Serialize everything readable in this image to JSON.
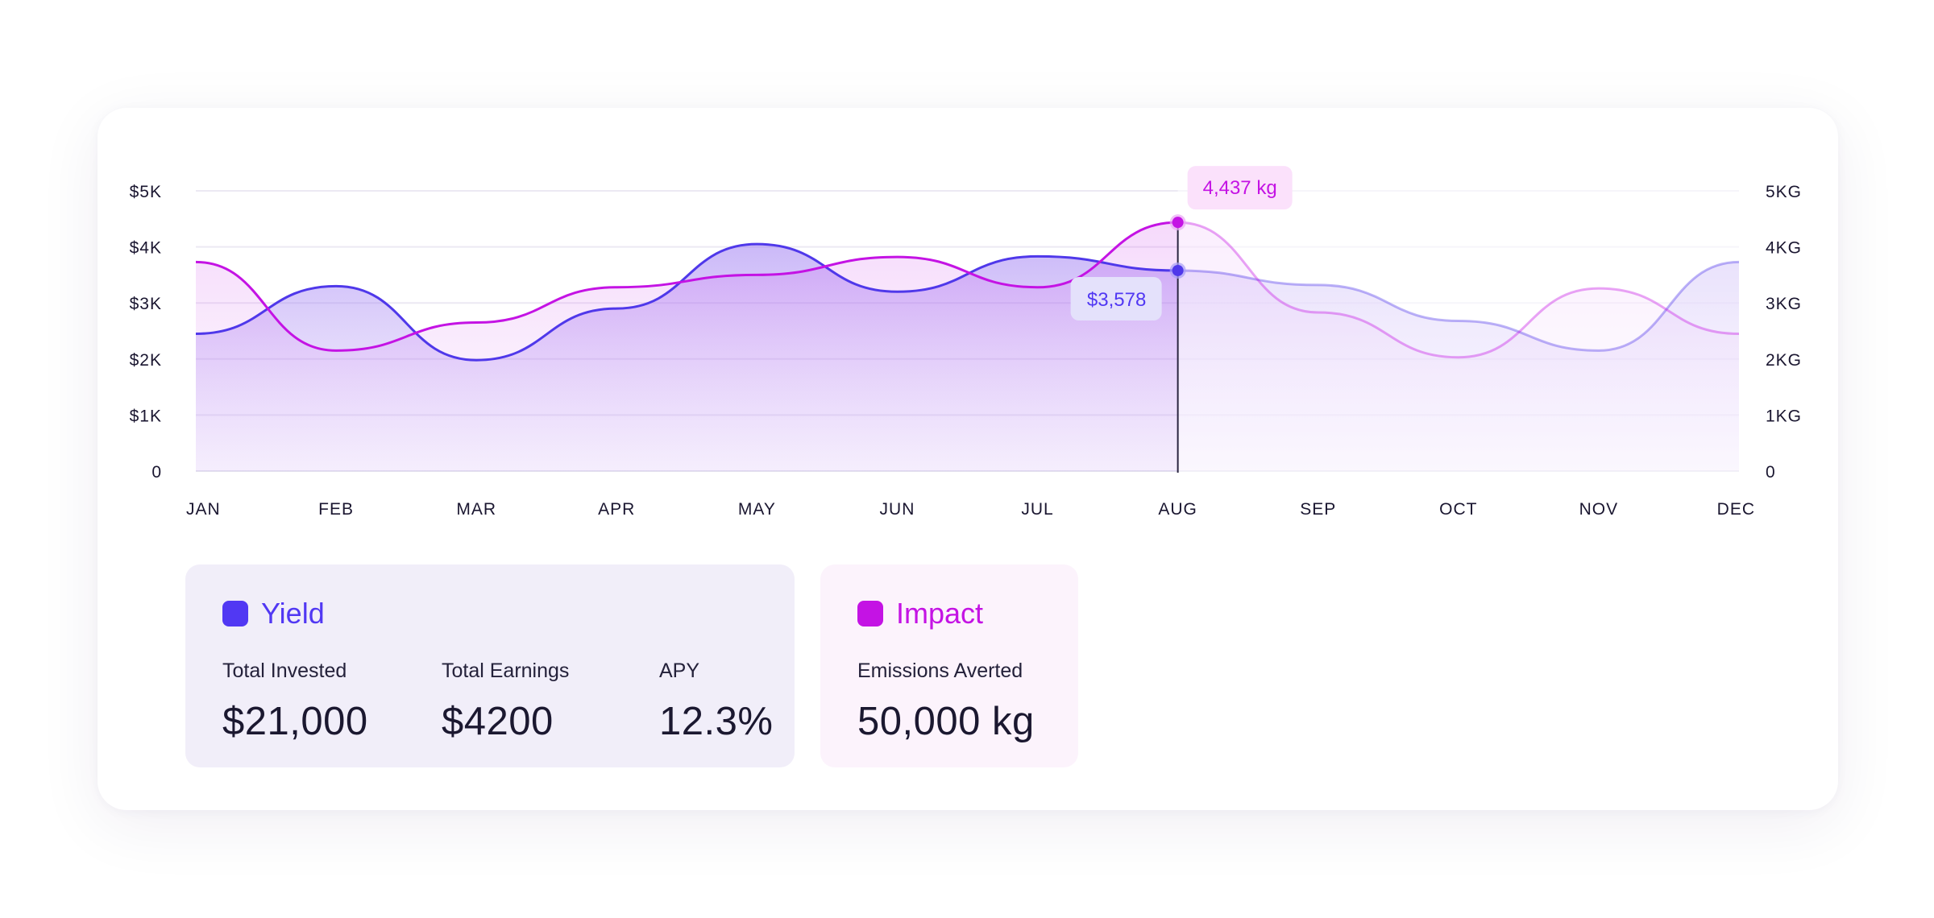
{
  "chart_data": {
    "type": "area",
    "x": [
      "JAN",
      "FEB",
      "MAR",
      "APR",
      "MAY",
      "JUN",
      "JUL",
      "AUG",
      "SEP",
      "OCT",
      "NOV",
      "DEC"
    ],
    "y_left_ticks": [
      "0",
      "$1K",
      "$2K",
      "$3K",
      "$4K",
      "$5K"
    ],
    "y_right_ticks": [
      "0",
      "1KG",
      "2KG",
      "3KG",
      "4KG",
      "5KG"
    ],
    "ylim_left": [
      0,
      5000
    ],
    "ylim_right": [
      0,
      5000
    ],
    "grid": true,
    "series": [
      {
        "name": "Yield",
        "axis": "left",
        "color": "#4f38ea",
        "values": [
          2450,
          3300,
          1980,
          2900,
          4050,
          3200,
          3830,
          3578,
          3320,
          2680,
          2150,
          3730
        ]
      },
      {
        "name": "Impact",
        "axis": "right",
        "color": "#c413e4",
        "values": [
          3730,
          2150,
          2650,
          3280,
          3500,
          3820,
          3280,
          4437,
          2830,
          2030,
          3260,
          2450
        ]
      }
    ],
    "highlight": {
      "category": "AUG",
      "yield_label": "$3,578",
      "impact_label": "4,437 kg"
    }
  },
  "yield_panel": {
    "title": "Yield",
    "color": "#5138f3",
    "stats": [
      {
        "label": "Total Invested",
        "value": "$21,000"
      },
      {
        "label": "Total Earnings",
        "value": "$4200"
      },
      {
        "label": "APY",
        "value": "12.3%"
      }
    ]
  },
  "impact_panel": {
    "title": "Impact",
    "color": "#c413e4",
    "stats": [
      {
        "label": "Emissions Averted",
        "value": "50,000 kg"
      }
    ]
  }
}
